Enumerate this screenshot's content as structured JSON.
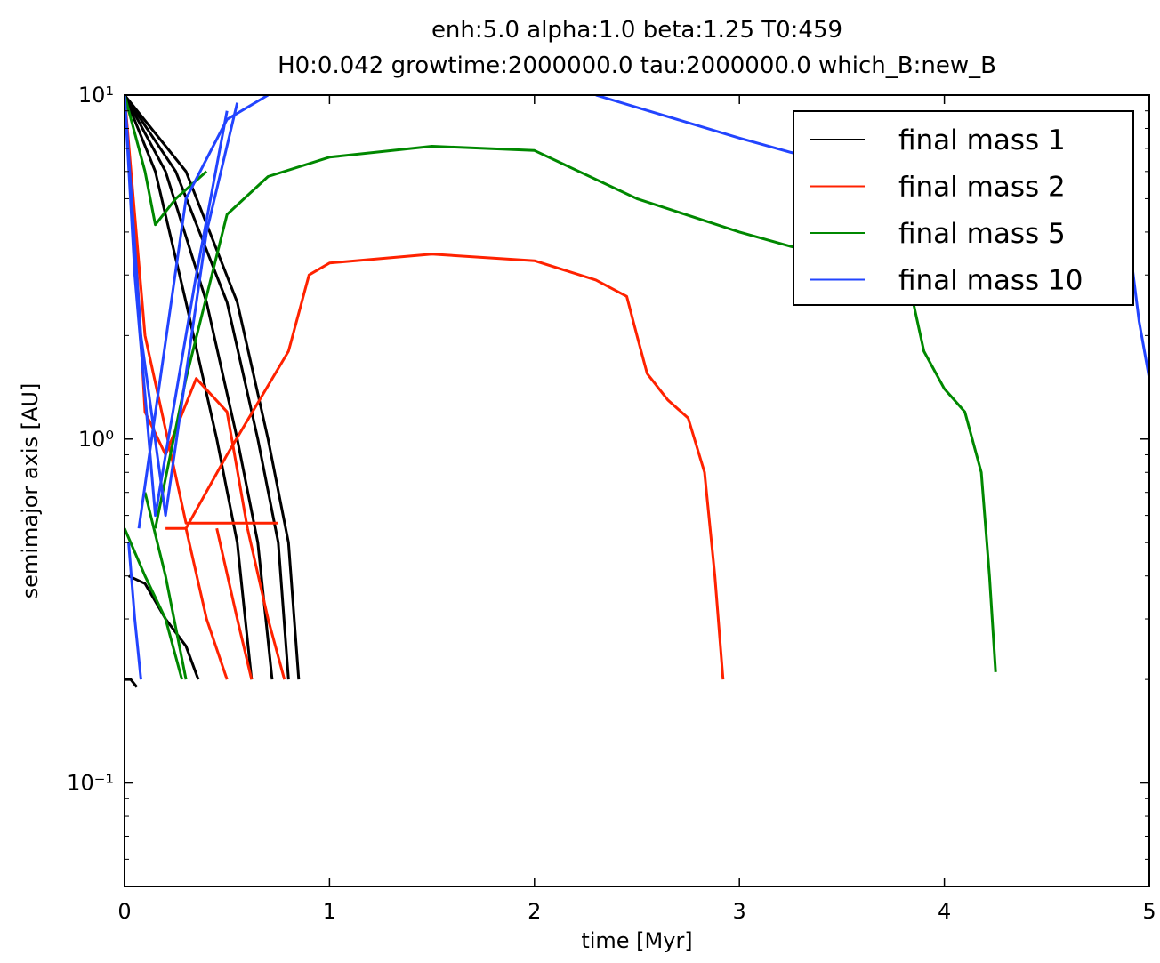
{
  "chart_data": {
    "type": "line",
    "title": "enh:5.0 alpha:1.0 beta:1.25 T0:459",
    "subtitle": "H0:0.042 growtime:2000000.0 tau:2000000.0 which_B:new_B",
    "x_label": "time [Myr]",
    "y_label": "semimajor axis [AU]",
    "xlim": [
      0,
      5
    ],
    "xticks": [
      0,
      1,
      2,
      3,
      4,
      5
    ],
    "ylim": [
      0.05,
      10
    ],
    "yticks": [
      {
        "value": 0.1,
        "label": "10⁻¹"
      },
      {
        "value": 1,
        "label": "10⁰"
      },
      {
        "value": 10,
        "label": "10¹"
      }
    ],
    "log_y": true,
    "legend": "upper right",
    "series": [
      {
        "name": "final mass 1",
        "color": "#000000",
        "tracks": [
          {
            "x": [
              0,
              0.2,
              0.4,
              0.55,
              0.65,
              0.72
            ],
            "values": [
              10,
              6,
              2.5,
              1,
              0.5,
              0.2
            ]
          },
          {
            "x": [
              0,
              0.25,
              0.5,
              0.65,
              0.75,
              0.8
            ],
            "values": [
              10,
              6,
              2.5,
              1,
              0.5,
              0.2
            ]
          },
          {
            "x": [
              0,
              0.3,
              0.55,
              0.7,
              0.8,
              0.85
            ],
            "values": [
              10,
              6,
              2.5,
              1,
              0.5,
              0.2
            ]
          },
          {
            "x": [
              0,
              0.15,
              0.3,
              0.45,
              0.55,
              0.62
            ],
            "values": [
              10,
              6,
              2.5,
              1,
              0.5,
              0.2
            ]
          },
          {
            "x": [
              0.02,
              0.1,
              0.2,
              0.3,
              0.36
            ],
            "values": [
              0.4,
              0.38,
              0.3,
              0.25,
              0.2
            ]
          },
          {
            "x": [
              0,
              0.03,
              0.06
            ],
            "values": [
              0.2,
              0.2,
              0.19
            ]
          }
        ]
      },
      {
        "name": "final mass 2",
        "color": "#ff2200",
        "tracks": [
          {
            "x": [
              0.2,
              0.3,
              0.5,
              0.8,
              0.9,
              1.0,
              1.5,
              2.0,
              2.3,
              2.45,
              2.5,
              2.55,
              2.65,
              2.75,
              2.83,
              2.88,
              2.92
            ],
            "values": [
              0.55,
              0.55,
              0.9,
              1.8,
              3.0,
              3.25,
              3.45,
              3.3,
              2.9,
              2.6,
              2.0,
              1.55,
              1.3,
              1.15,
              0.8,
              0.4,
              0.2
            ]
          },
          {
            "x": [
              0,
              0.05,
              0.1,
              0.2,
              0.35,
              0.5,
              0.6
            ],
            "values": [
              10,
              4,
              1.2,
              0.9,
              1.5,
              1.2,
              0.55
            ]
          },
          {
            "x": [
              0,
              0.1,
              0.3,
              0.5,
              0.75
            ],
            "values": [
              10,
              2,
              0.57,
              0.57,
              0.57
            ]
          },
          {
            "x": [
              0.3,
              0.4,
              0.5
            ],
            "values": [
              0.55,
              0.3,
              0.2
            ]
          },
          {
            "x": [
              0.45,
              0.55,
              0.62
            ],
            "values": [
              0.55,
              0.3,
              0.2
            ]
          },
          {
            "x": [
              0.6,
              0.7,
              0.78
            ],
            "values": [
              0.55,
              0.3,
              0.2
            ]
          }
        ]
      },
      {
        "name": "final mass 5",
        "color": "#008800",
        "tracks": [
          {
            "x": [
              0.15,
              0.3,
              0.5,
              0.7,
              1.0,
              1.5,
              2.0,
              2.5,
              3.0,
              3.5,
              3.83,
              3.9,
              4.0,
              4.1,
              4.18,
              4.22,
              4.25
            ],
            "values": [
              0.55,
              1.5,
              4.5,
              5.8,
              6.6,
              7.1,
              6.9,
              5.0,
              4.0,
              3.3,
              2.8,
              1.8,
              1.4,
              1.2,
              0.8,
              0.4,
              0.21
            ]
          },
          {
            "x": [
              0,
              0.1,
              0.15,
              0.25,
              0.4
            ],
            "values": [
              10,
              6,
              4.2,
              5,
              6
            ]
          },
          {
            "x": [
              0,
              0.1,
              0.2,
              0.28
            ],
            "values": [
              0.55,
              0.4,
              0.3,
              0.2
            ]
          },
          {
            "x": [
              0.1,
              0.2,
              0.3
            ],
            "values": [
              0.7,
              0.4,
              0.2
            ]
          }
        ]
      },
      {
        "name": "final mass 10",
        "color": "#2244ff",
        "tracks": [
          {
            "x": [
              0.07,
              0.3,
              0.5,
              0.7,
              null,
              2.3,
              3.0,
              3.5,
              4.5,
              4.9,
              4.95,
              5.0
            ],
            "values": [
              0.55,
              5,
              8.5,
              10,
              null,
              10,
              7.5,
              6.2,
              4.5,
              3.8,
              2.2,
              1.5
            ]
          },
          {
            "x": [
              0,
              0.05,
              0.15,
              0.35,
              0.5
            ],
            "values": [
              10,
              3,
              0.6,
              3,
              9
            ]
          },
          {
            "x": [
              0,
              0.08,
              0.2,
              0.4,
              0.55
            ],
            "values": [
              10,
              2,
              0.6,
              4,
              9.5
            ]
          },
          {
            "x": [
              0.02,
              0.05,
              0.08
            ],
            "values": [
              0.5,
              0.3,
              0.2
            ]
          }
        ]
      }
    ]
  }
}
